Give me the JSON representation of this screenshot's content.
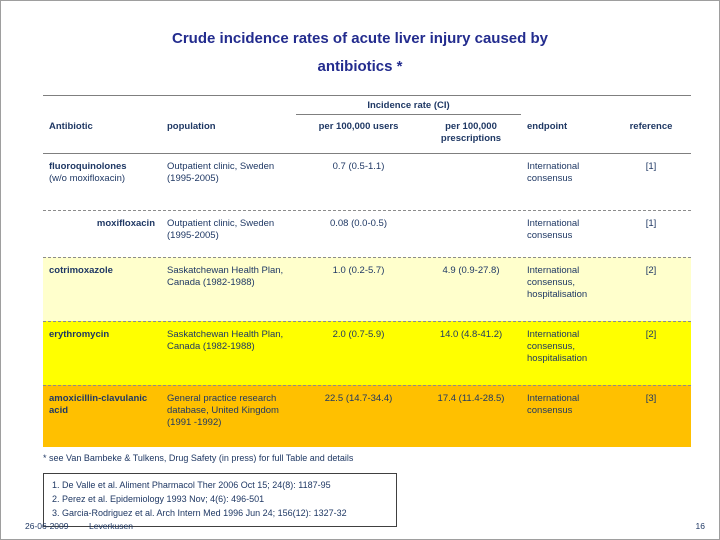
{
  "slide": {
    "title_line1": "Crude incidence rates of acute liver injury caused by",
    "title_line2": "antibiotics *",
    "footnote": "* see Van Bambeke & Tulkens, Drug Safety (in press) for full Table and details",
    "footer": {
      "date": "26-06-2009",
      "location": "Leverkusen",
      "page_number": "16"
    }
  },
  "table": {
    "group_header": "Incidence rate (CI)",
    "headers": {
      "antibiotic": "Antibiotic",
      "population": "population",
      "per_users": "per 100,000 users",
      "per_prescriptions": "per 100,000 prescriptions",
      "endpoint": "endpoint",
      "reference": "reference"
    },
    "rows": [
      {
        "antibiotic": "fluoroquinolones",
        "antibiotic_note": "(w/o moxifloxacin)",
        "population": "Outpatient clinic, Sweden (1995-2005)",
        "per_users": "0.7 (0.5-1.1)",
        "per_prescriptions": "",
        "endpoint": "International consensus",
        "reference": "[1]",
        "bg": "#ffffff"
      },
      {
        "antibiotic": "moxifloxacin",
        "antibiotic_note": "",
        "population": "Outpatient clinic, Sweden (1995-2005)",
        "per_users": "0.08 (0.0-0.5)",
        "per_prescriptions": "",
        "endpoint": "International consensus",
        "reference": "[1]",
        "bg": "#ffffff"
      },
      {
        "antibiotic": "cotrimoxazole",
        "antibiotic_note": "",
        "population": "Saskatchewan Health Plan, Canada (1982-1988)",
        "per_users": "1.0 (0.2-5.7)",
        "per_prescriptions": "4.9 (0.9-27.8)",
        "endpoint": "International consensus, hospitalisation",
        "reference": "[2]",
        "bg": "#ffffcc"
      },
      {
        "antibiotic": "erythromycin",
        "antibiotic_note": "",
        "population": "Saskatchewan Health Plan, Canada (1982-1988)",
        "per_users": "2.0 (0.7-5.9)",
        "per_prescriptions": "14.0 (4.8-41.2)",
        "endpoint": "International consensus, hospitalisation",
        "reference": "[2]",
        "bg": "#ffff00"
      },
      {
        "antibiotic": "amoxicillin-clavulanic acid",
        "antibiotic_note": "",
        "population": "General practice research database, United Kingdom (1991 -1992)",
        "per_users": "22.5 (14.7-34.4)",
        "per_prescriptions": "17.4 (11.4-28.5)",
        "endpoint": "International consensus",
        "reference": "[3]",
        "bg": "#ffc000"
      }
    ]
  },
  "references_box": {
    "lines": [
      "1. De Valle et al. Aliment Pharmacol Ther 2006 Oct 15; 24(8): 1187-95",
      "2. Perez et al. Epidemiology 1993 Nov; 4(6): 496-501",
      "3. Garcia-Rodriguez et al. Arch Intern Med 1996 Jun 24; 156(12): 1327-32"
    ]
  },
  "colors": {
    "title_text": "#232c8e",
    "body_text": "#1f3864",
    "row_highlight_pale": "#ffffcc",
    "row_highlight_yellow": "#ffff00",
    "row_highlight_orange": "#ffc000"
  }
}
